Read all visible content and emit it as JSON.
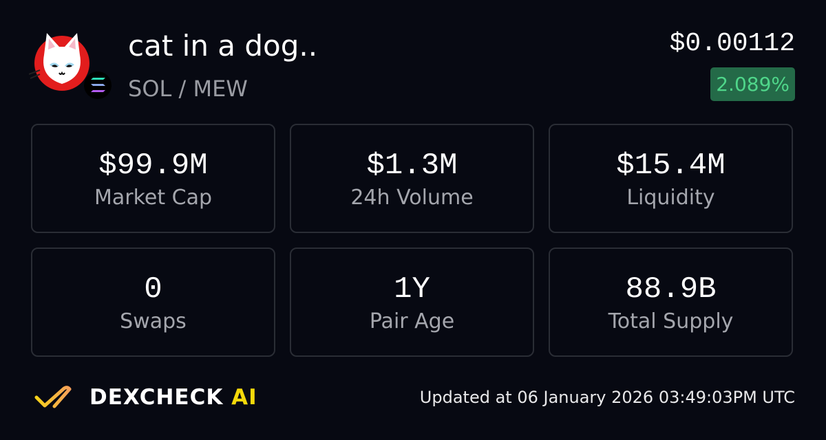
{
  "token": {
    "name": "cat in a dog..",
    "pair": "SOL / MEW",
    "price": "$0.00112",
    "change": "2.089%",
    "change_color": "#4fd68a",
    "logo_icon": "cat-face-logo",
    "chain_icon": "solana-icon"
  },
  "stats": [
    {
      "value": "$99.9M",
      "label": "Market Cap"
    },
    {
      "value": "$1.3M",
      "label": "24h Volume"
    },
    {
      "value": "$15.4M",
      "label": "Liquidity"
    },
    {
      "value": "0",
      "label": "Swaps"
    },
    {
      "value": "1Y",
      "label": "Pair Age"
    },
    {
      "value": "88.9B",
      "label": "Total Supply"
    }
  ],
  "footer": {
    "brand": "DEXCHECK",
    "brand_ai": "AI",
    "updated": "Updated at 06 January 2026 03:49:03PM UTC"
  }
}
